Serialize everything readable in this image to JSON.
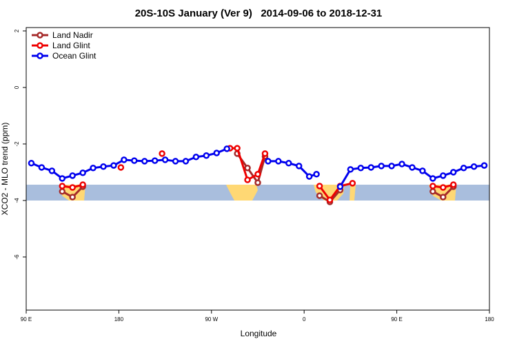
{
  "chart_data": {
    "type": "line",
    "title": "20S-10S January (Ver 9)   2014-09-06 to 2018-12-31",
    "x_label": "Longitude",
    "y_label": "XCO2 - MLO trend (ppm)",
    "xlim": [
      90,
      540
    ],
    "ylim": [
      -7.88,
      2.12
    ],
    "xticks": [
      {
        "value": 90,
        "label": "90 E"
      },
      {
        "value": 180,
        "label": "180"
      },
      {
        "value": 270,
        "label": "90 W"
      },
      {
        "value": 360,
        "label": "0"
      },
      {
        "value": 450,
        "label": "90 E"
      },
      {
        "value": 540,
        "label": "180"
      }
    ],
    "yticks": [
      -6,
      -4,
      -2,
      0,
      2
    ],
    "legend": "top-left",
    "series": [
      {
        "name": "Land Nadir",
        "color": "#a52a2a",
        "x": [
          125,
          135,
          145,
          220,
          295,
          305,
          315,
          322,
          350,
          375,
          385,
          395,
          440,
          485,
          495,
          505
        ],
        "values": [
          -3.68,
          -3.88,
          -3.51,
          null,
          -2.34,
          -2.85,
          -3.37,
          -2.44,
          null,
          -3.83,
          -4.05,
          -3.63,
          null,
          -3.68,
          -3.88,
          -3.51
        ]
      },
      {
        "name": "Land Glint",
        "color": "#ee0000",
        "x": [
          125,
          135,
          145,
          160,
          182,
          200,
          222,
          250,
          288,
          295,
          305,
          315,
          322,
          350,
          375,
          385,
          395,
          407,
          440,
          485,
          495,
          505
        ],
        "values": [
          -3.49,
          -3.54,
          -3.44,
          null,
          -2.83,
          null,
          -2.34,
          null,
          -2.15,
          -2.15,
          -3.27,
          -3.07,
          -2.34,
          null,
          -3.49,
          -3.98,
          -3.49,
          -3.39,
          null,
          -3.49,
          -3.54,
          -3.44
        ]
      },
      {
        "name": "Ocean Glint",
        "color": "#0000ee",
        "x": [
          95,
          105,
          115,
          125,
          135,
          145,
          155,
          165,
          175,
          185,
          195,
          205,
          215,
          225,
          235,
          245,
          255,
          265,
          275,
          285,
          305,
          325,
          335,
          345,
          355,
          365,
          372,
          385,
          395,
          405,
          415,
          425,
          435,
          445,
          455,
          465,
          475,
          485,
          495,
          505,
          515,
          525,
          535
        ],
        "values": [
          -2.68,
          -2.83,
          -2.95,
          -3.22,
          -3.12,
          -3.02,
          -2.85,
          -2.8,
          -2.76,
          -2.56,
          -2.59,
          -2.61,
          -2.59,
          -2.56,
          -2.61,
          -2.61,
          -2.46,
          -2.41,
          -2.32,
          -2.17,
          null,
          -2.61,
          -2.61,
          -2.68,
          -2.78,
          -3.15,
          -3.07,
          null,
          -3.51,
          -2.9,
          -2.85,
          -2.83,
          -2.78,
          -2.78,
          -2.71,
          -2.83,
          -2.95,
          -3.22,
          -3.12,
          -3.0,
          -2.85,
          -2.8,
          -2.76
        ]
      }
    ]
  }
}
